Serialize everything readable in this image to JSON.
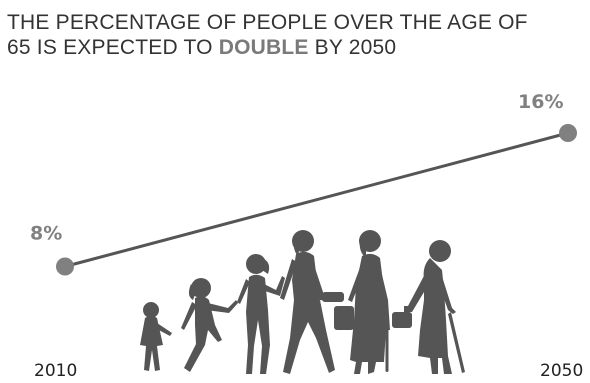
{
  "title": {
    "line1": "THE PERCENTAGE OF PEOPLE OVER THE AGE OF",
    "line2_before": "65 IS EXPECTED TO ",
    "line2_highlight": "DOUBLE",
    "line2_after": " BY 2050"
  },
  "colors": {
    "line": "#555555",
    "marker": "#808080",
    "highlight": "#7a7a7a",
    "silhouette": "#555555"
  },
  "illustration": "people-aging-silhouettes",
  "chart_data": {
    "type": "line",
    "x": [
      "2010",
      "2050"
    ],
    "values": [
      8,
      16
    ],
    "data_labels": [
      "8%",
      "16%"
    ],
    "ylim": [
      0,
      16
    ],
    "grid": false,
    "legend": "none"
  }
}
